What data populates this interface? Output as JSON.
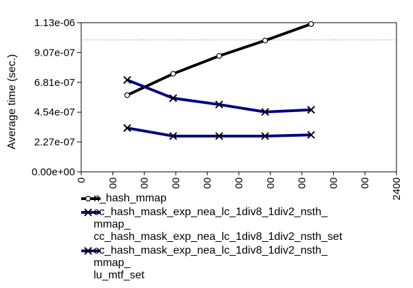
{
  "chart_data": {
    "type": "line",
    "title": "",
    "xlabel": "",
    "ylabel": "Average time (sec.)",
    "xlim": [
      0,
      2400
    ],
    "ylim": [
      0,
      1.13e-06
    ],
    "x_ticks": [
      "0",
      "00",
      "00",
      "00",
      "00",
      "00",
      "00",
      "00",
      "00",
      "00",
      "2400"
    ],
    "y_ticks": [
      "0.00e+00",
      "2.27e-07",
      "4.54e-07",
      "6.81e-07",
      "9.07e-07",
      "1.13e-06"
    ],
    "reference_line": 1e-06,
    "grid": false,
    "legend_position": "bottom",
    "series": [
      {
        "name": "n_hash_mmap",
        "marker": "circle",
        "color": "#000000",
        "x": [
          350,
          700,
          1050,
          1400,
          1750
        ],
        "y": [
          5.81e-07,
          7.43e-07,
          8.78e-07,
          9.95e-07,
          1.12e-06
        ]
      },
      {
        "name": "cc_hash_mask_exp_nea_lc_1div8_1div2_nsth_\nmmap_\ncc_hash_mask_exp_nea_lc_1div8_1div2_nsth_set",
        "marker": "x",
        "color": "#000080",
        "x": [
          350,
          700,
          1050,
          1400,
          1750
        ],
        "y": [
          6.96e-07,
          5.58e-07,
          5.1e-07,
          4.54e-07,
          4.7e-07
        ]
      },
      {
        "name": "cc_hash_mask_exp_nea_lc_1div8_1div2_nsth_\nmmap_\nlu_mtf_set",
        "marker": "x",
        "color": "#000080",
        "x": [
          350,
          700,
          1050,
          1400,
          1750
        ],
        "y": [
          3.32e-07,
          2.71e-07,
          2.71e-07,
          2.71e-07,
          2.8e-07
        ]
      }
    ]
  }
}
